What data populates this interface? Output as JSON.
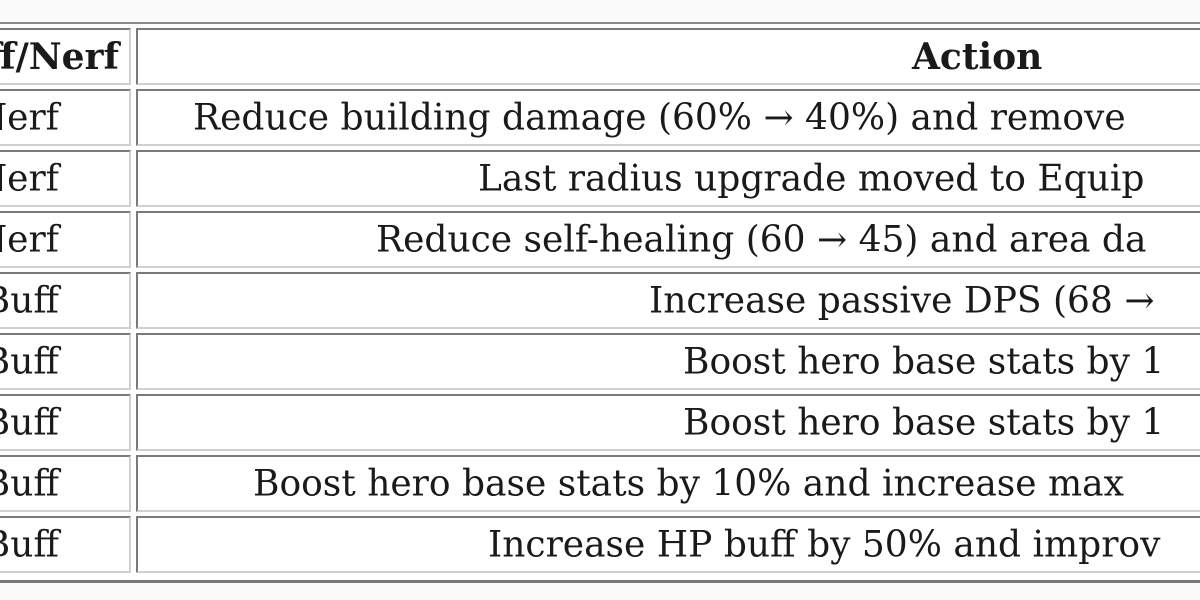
{
  "table": {
    "headers": [
      "Buff/Nerf",
      "Action"
    ],
    "rows": [
      {
        "type": "Nerf",
        "action": "Reduce building damage (60% → 40%) and remove"
      },
      {
        "type": "Nerf",
        "action": "Last radius upgrade moved to Equip"
      },
      {
        "type": "Nerf",
        "action": "Reduce self-healing (60 → 45) and area da"
      },
      {
        "type": "Buff",
        "action": "Increase passive DPS (68 →"
      },
      {
        "type": "Buff",
        "action": "Boost hero base stats by 1"
      },
      {
        "type": "Buff",
        "action": "Boost hero base stats by 1"
      },
      {
        "type": "Buff",
        "action": "Boost hero base stats by 10% and increase max"
      },
      {
        "type": "Buff",
        "action": "Increase HP buff by 50% and improv"
      }
    ]
  }
}
